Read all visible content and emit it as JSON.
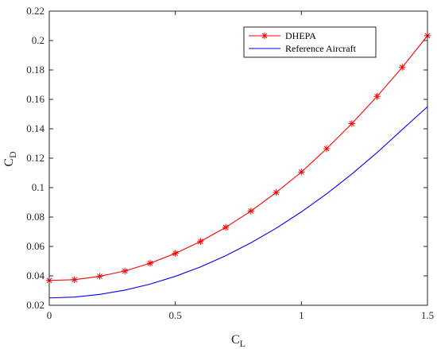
{
  "chart_data": {
    "type": "line",
    "title": "",
    "xlabel": {
      "main": "C",
      "sub": "L"
    },
    "ylabel": {
      "main": "C",
      "sub": "D"
    },
    "xlim": [
      0,
      1.5
    ],
    "ylim": [
      0.02,
      0.22
    ],
    "xticks": [
      0,
      0.5,
      1,
      1.5
    ],
    "xtick_labels": [
      "0",
      "0.5",
      "1",
      "1.5"
    ],
    "yticks": [
      0.02,
      0.04,
      0.06,
      0.08,
      0.1,
      0.12,
      0.14,
      0.16,
      0.18,
      0.2,
      0.22
    ],
    "ytick_labels": [
      "0.02",
      "0.04",
      "0.06",
      "0.08",
      "0.1",
      "0.12",
      "0.14",
      "0.16",
      "0.18",
      "0.2",
      "0.22"
    ],
    "grid": false,
    "legend_position": "top-right",
    "series": [
      {
        "name": "DHEPA",
        "color": "#ff0000",
        "marker": "asterisk",
        "x": [
          0,
          0.1,
          0.2,
          0.3,
          0.4,
          0.5,
          0.6,
          0.7,
          0.8,
          0.9,
          1.0,
          1.1,
          1.2,
          1.3,
          1.4,
          1.5
        ],
        "y": [
          0.0369,
          0.0374,
          0.0397,
          0.0433,
          0.0486,
          0.0553,
          0.0634,
          0.073,
          0.0841,
          0.0967,
          0.1106,
          0.1265,
          0.1435,
          0.162,
          0.1818,
          0.2033
        ]
      },
      {
        "name": "Reference Aircraft",
        "color": "#0000ff",
        "marker": "none",
        "x": [
          0,
          0.1,
          0.2,
          0.3,
          0.4,
          0.5,
          0.6,
          0.7,
          0.8,
          0.9,
          1.0,
          1.1,
          1.2,
          1.3,
          1.4,
          1.5
        ],
        "y": [
          0.025,
          0.0256,
          0.0274,
          0.0303,
          0.0344,
          0.0397,
          0.0461,
          0.0537,
          0.0625,
          0.0724,
          0.0835,
          0.0958,
          0.1092,
          0.1238,
          0.1395,
          0.155
        ]
      }
    ]
  }
}
